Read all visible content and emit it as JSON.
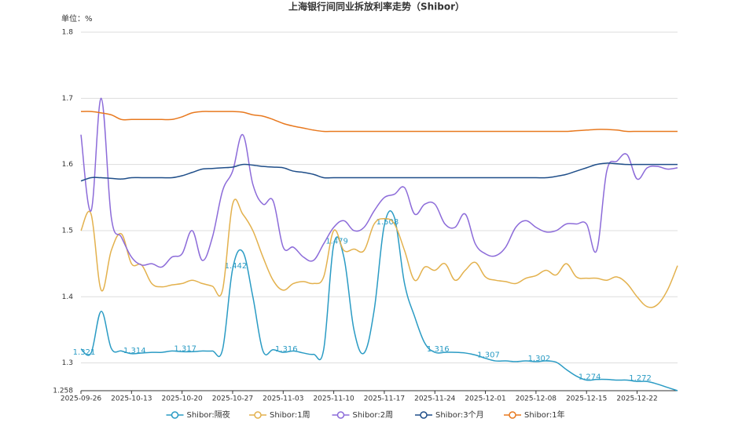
{
  "chart_data": {
    "type": "line",
    "title": "上海银行间同业拆放利率走势（Shibor）",
    "unit_label": "单位：%",
    "categories": [
      "2025-09-26",
      null,
      null,
      null,
      null,
      "2025-10-13",
      null,
      null,
      null,
      null,
      "2025-10-20",
      null,
      null,
      null,
      null,
      "2025-10-27",
      null,
      null,
      null,
      null,
      "2025-11-03",
      null,
      null,
      null,
      null,
      "2025-11-10",
      null,
      null,
      null,
      null,
      "2025-11-17",
      null,
      null,
      null,
      null,
      "2025-11-24",
      null,
      null,
      null,
      null,
      "2025-12-01",
      null,
      null,
      null,
      null,
      "2025-12-08",
      null,
      null,
      null,
      null,
      "2025-12-15",
      null,
      null,
      null,
      null,
      "2025-12-22",
      null,
      null,
      null,
      null
    ],
    "ylim": [
      1.258,
      1.8
    ],
    "yticks": [
      1.258,
      1.3,
      1.4,
      1.5,
      1.6,
      1.7,
      1.8
    ],
    "grid": true,
    "legend": "bottom",
    "series": [
      {
        "name": "Shibor:隔夜",
        "color": "#2a9bc4",
        "show_labels": true,
        "values": [
          1.321,
          1.315,
          1.378,
          1.322,
          1.318,
          1.314,
          1.315,
          1.316,
          1.316,
          1.318,
          1.317,
          1.317,
          1.318,
          1.318,
          1.32,
          1.442,
          1.468,
          1.4,
          1.318,
          1.32,
          1.316,
          1.318,
          1.315,
          1.313,
          1.32,
          1.479,
          1.46,
          1.35,
          1.315,
          1.38,
          1.508,
          1.52,
          1.42,
          1.37,
          1.33,
          1.316,
          1.316,
          1.316,
          1.315,
          1.312,
          1.307,
          1.303,
          1.303,
          1.302,
          1.303,
          1.302,
          1.303,
          1.301,
          1.29,
          1.28,
          1.274,
          1.275,
          1.275,
          1.274,
          1.274,
          1.272,
          1.272,
          1.268,
          1.263,
          1.258
        ]
      },
      {
        "name": "Shibor:1周",
        "color": "#e3b14d",
        "values": [
          1.5,
          1.525,
          1.41,
          1.47,
          1.495,
          1.45,
          1.448,
          1.42,
          1.415,
          1.418,
          1.42,
          1.425,
          1.42,
          1.416,
          1.41,
          1.54,
          1.525,
          1.5,
          1.46,
          1.425,
          1.41,
          1.42,
          1.423,
          1.42,
          1.43,
          1.5,
          1.47,
          1.472,
          1.47,
          1.51,
          1.518,
          1.51,
          1.47,
          1.425,
          1.445,
          1.44,
          1.45,
          1.425,
          1.44,
          1.452,
          1.43,
          1.425,
          1.423,
          1.42,
          1.428,
          1.432,
          1.44,
          1.433,
          1.45,
          1.43,
          1.428,
          1.428,
          1.425,
          1.43,
          1.42,
          1.4,
          1.385,
          1.388,
          1.41,
          1.447
        ]
      },
      {
        "name": "Shibor:2周",
        "color": "#8c6bd9",
        "values": [
          1.645,
          1.53,
          1.7,
          1.52,
          1.49,
          1.46,
          1.448,
          1.45,
          1.445,
          1.46,
          1.465,
          1.5,
          1.455,
          1.49,
          1.56,
          1.59,
          1.645,
          1.57,
          1.54,
          1.545,
          1.475,
          1.475,
          1.46,
          1.455,
          1.48,
          1.505,
          1.515,
          1.5,
          1.505,
          1.53,
          1.55,
          1.555,
          1.565,
          1.525,
          1.54,
          1.54,
          1.51,
          1.505,
          1.525,
          1.48,
          1.465,
          1.462,
          1.475,
          1.505,
          1.515,
          1.505,
          1.498,
          1.5,
          1.51,
          1.51,
          1.51,
          1.47,
          1.59,
          1.605,
          1.615,
          1.578,
          1.595,
          1.597,
          1.593,
          1.595
        ]
      },
      {
        "name": "Shibor:3个月",
        "color": "#1f4e89",
        "values": [
          1.575,
          1.58,
          1.58,
          1.579,
          1.578,
          1.58,
          1.58,
          1.58,
          1.58,
          1.58,
          1.583,
          1.588,
          1.593,
          1.594,
          1.595,
          1.596,
          1.6,
          1.599,
          1.597,
          1.596,
          1.595,
          1.59,
          1.588,
          1.585,
          1.58,
          1.58,
          1.58,
          1.58,
          1.58,
          1.58,
          1.58,
          1.58,
          1.58,
          1.58,
          1.58,
          1.58,
          1.58,
          1.58,
          1.58,
          1.58,
          1.58,
          1.58,
          1.58,
          1.58,
          1.58,
          1.58,
          1.58,
          1.582,
          1.585,
          1.59,
          1.595,
          1.6,
          1.602,
          1.601,
          1.6,
          1.6,
          1.6,
          1.6,
          1.6,
          1.6
        ]
      },
      {
        "name": "Shibor:1年",
        "color": "#e8791f",
        "values": [
          1.68,
          1.68,
          1.678,
          1.675,
          1.668,
          1.668,
          1.668,
          1.668,
          1.668,
          1.668,
          1.672,
          1.678,
          1.68,
          1.68,
          1.68,
          1.68,
          1.679,
          1.675,
          1.673,
          1.668,
          1.662,
          1.658,
          1.655,
          1.652,
          1.65,
          1.65,
          1.65,
          1.65,
          1.65,
          1.65,
          1.65,
          1.65,
          1.65,
          1.65,
          1.65,
          1.65,
          1.65,
          1.65,
          1.65,
          1.65,
          1.65,
          1.65,
          1.65,
          1.65,
          1.65,
          1.65,
          1.65,
          1.65,
          1.65,
          1.651,
          1.652,
          1.653,
          1.653,
          1.652,
          1.65,
          1.65,
          1.65,
          1.65,
          1.65,
          1.65
        ]
      }
    ]
  }
}
